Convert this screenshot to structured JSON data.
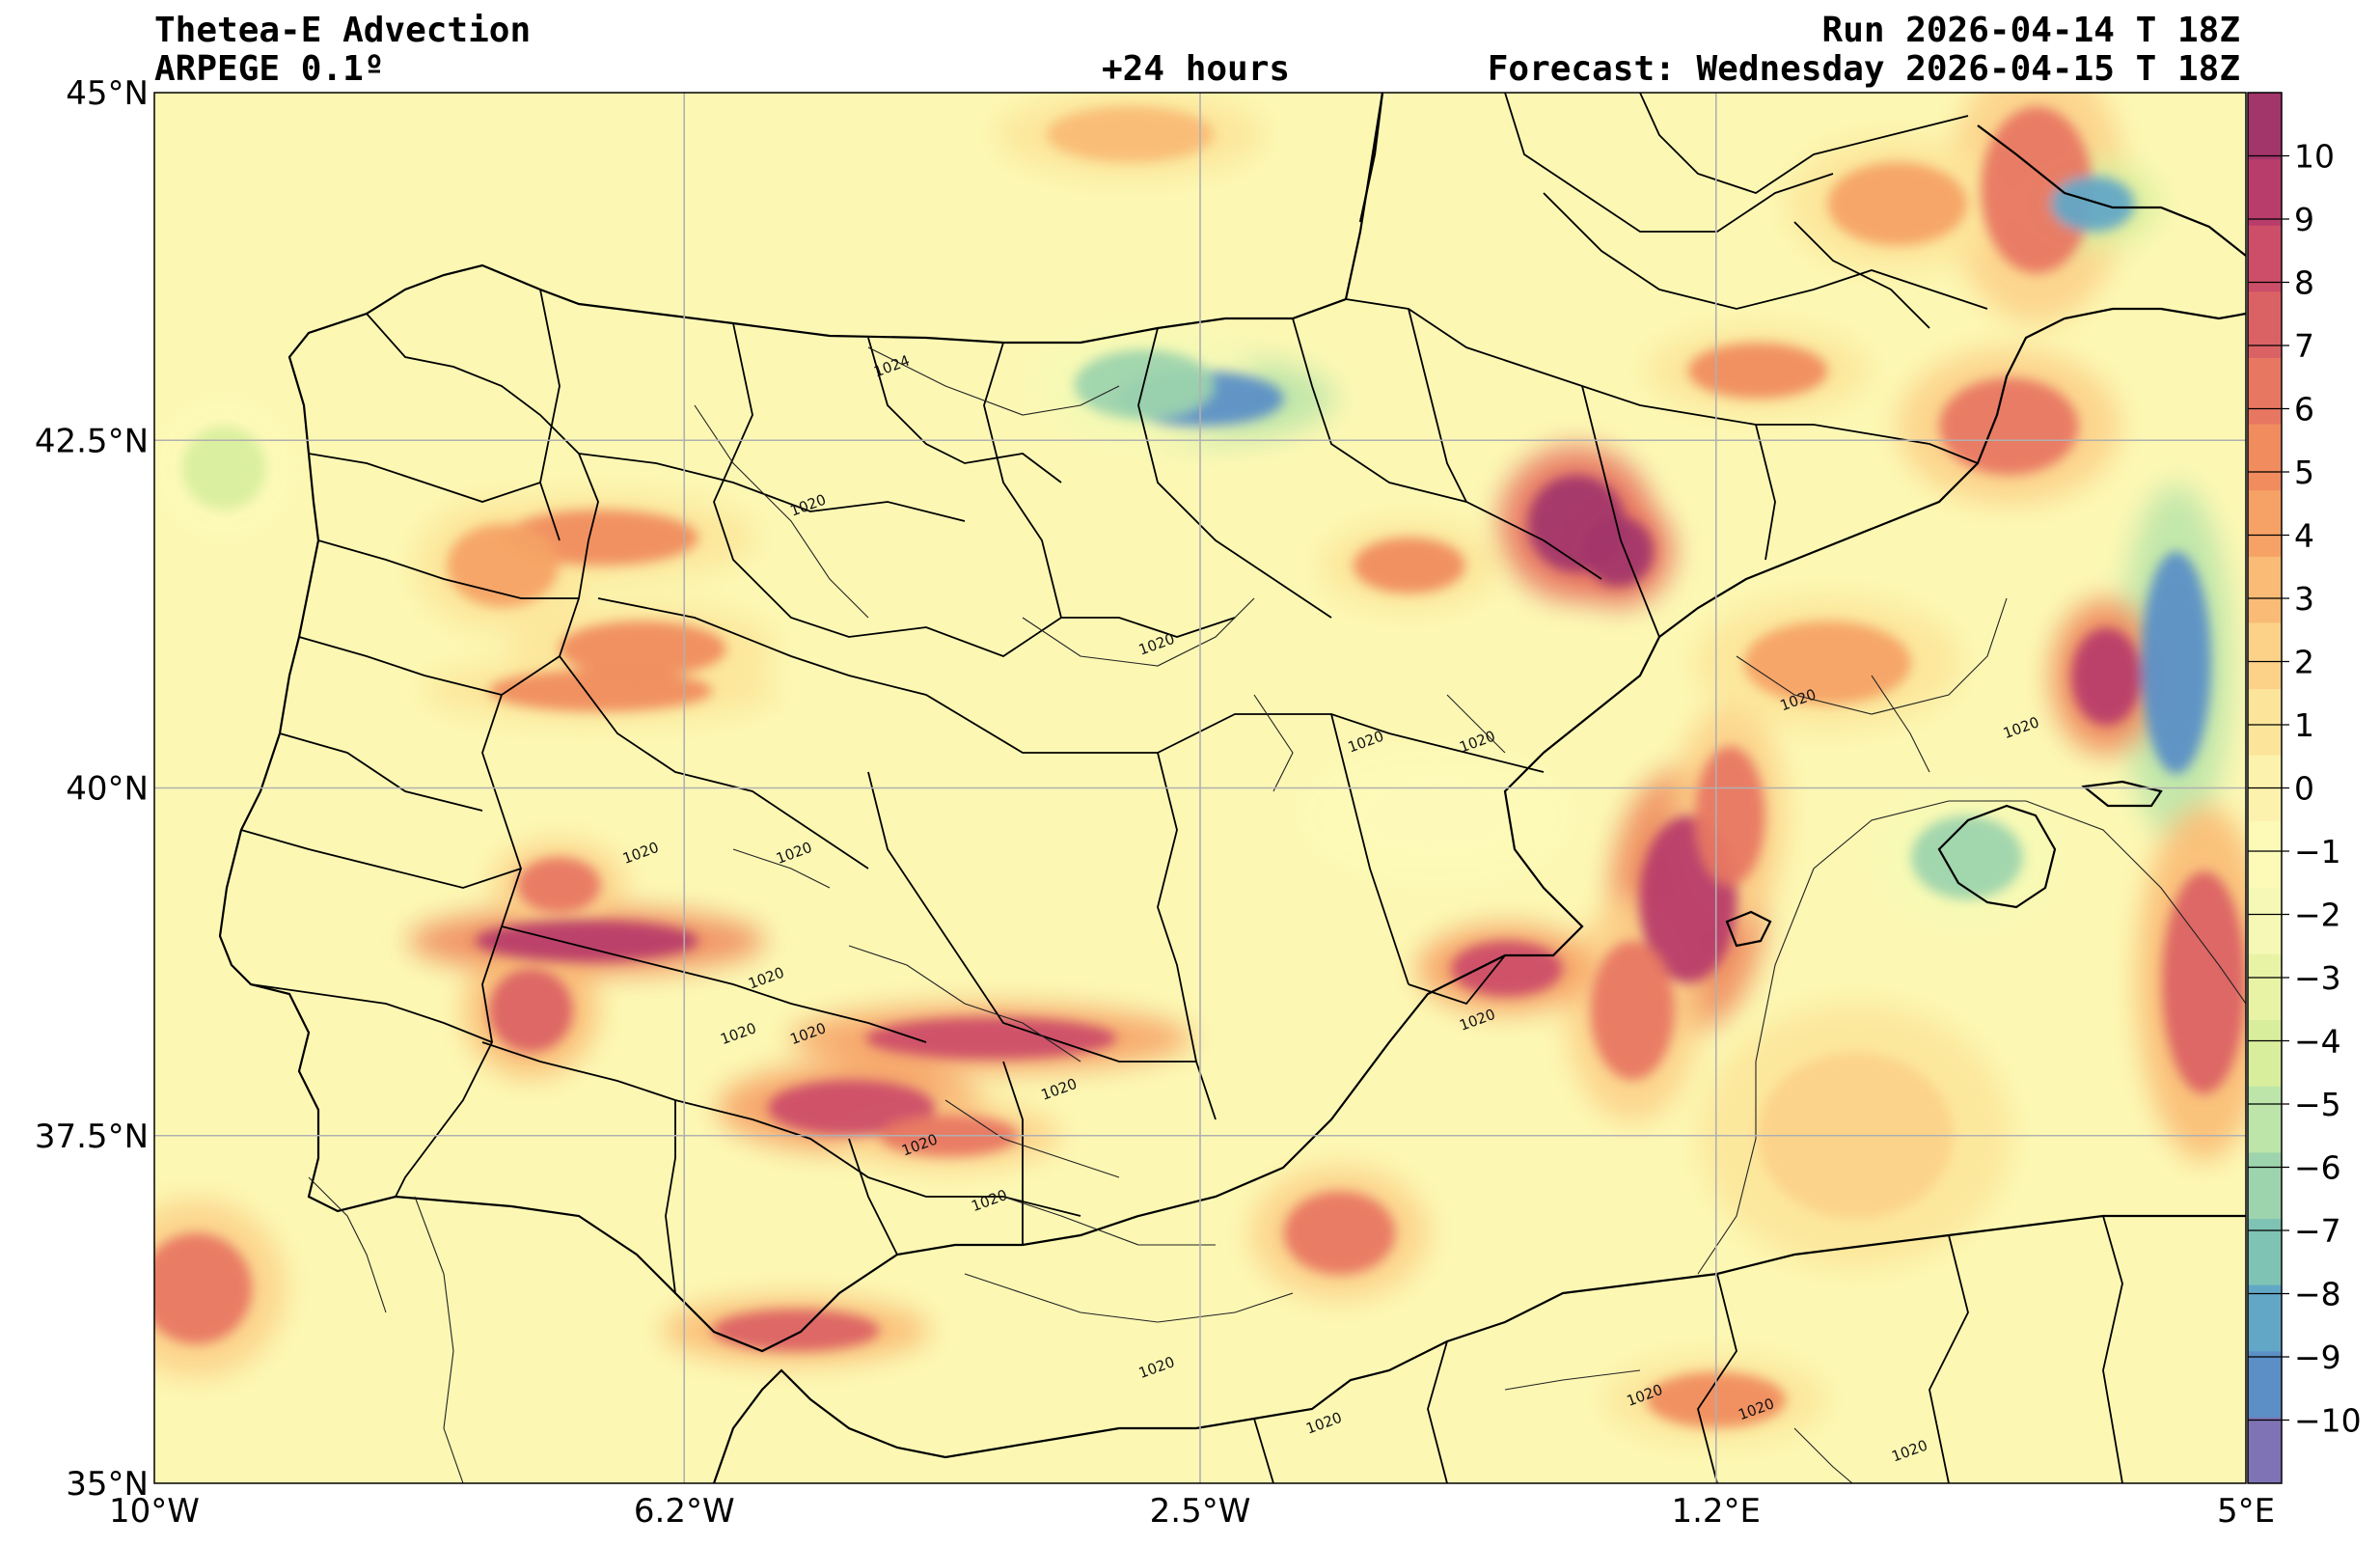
{
  "header": {
    "title": "Thetea-E Advection",
    "model": "ARPEGE 0.1º",
    "lead": "+24 hours",
    "run": "Run 2026-04-14 T 18Z",
    "forecast": "Forecast: Wednesday 2026-04-15 T 18Z"
  },
  "map": {
    "lon_range": [
      -10,
      5
    ],
    "lat_range": [
      35,
      45
    ],
    "lat_ticks": [
      {
        "value": 45,
        "label": "45°N"
      },
      {
        "value": 42.5,
        "label": "42.5°N"
      },
      {
        "value": 40,
        "label": "40°N"
      },
      {
        "value": 37.5,
        "label": "37.5°N"
      },
      {
        "value": 35,
        "label": "35°N"
      }
    ],
    "lon_ticks": [
      {
        "value": -10,
        "label": "10°W"
      },
      {
        "value": -6.2,
        "label": "6.2°W"
      },
      {
        "value": -2.5,
        "label": "2.5°W"
      },
      {
        "value": 1.2,
        "label": "1.2°E"
      },
      {
        "value": 5,
        "label": "5°E"
      }
    ],
    "grid": true,
    "isobar_labels": [
      {
        "lon": -4.7,
        "lat": 43.0,
        "text": "1024"
      },
      {
        "lon": -5.3,
        "lat": 42.0,
        "text": "1020"
      },
      {
        "lon": -2.8,
        "lat": 41.0,
        "text": "1020"
      },
      {
        "lon": -1.3,
        "lat": 40.3,
        "text": "1020"
      },
      {
        "lon": -0.5,
        "lat": 40.3,
        "text": "1020"
      },
      {
        "lon": 1.8,
        "lat": 40.6,
        "text": "1020"
      },
      {
        "lon": 3.4,
        "lat": 40.4,
        "text": "1020"
      },
      {
        "lon": -6.5,
        "lat": 39.5,
        "text": "1020"
      },
      {
        "lon": -5.4,
        "lat": 39.5,
        "text": "1020"
      },
      {
        "lon": -5.6,
        "lat": 38.6,
        "text": "1020"
      },
      {
        "lon": -5.8,
        "lat": 38.2,
        "text": "1020"
      },
      {
        "lon": -5.3,
        "lat": 38.2,
        "text": "1020"
      },
      {
        "lon": -0.5,
        "lat": 38.3,
        "text": "1020"
      },
      {
        "lon": -3.5,
        "lat": 37.8,
        "text": "1020"
      },
      {
        "lon": -4.5,
        "lat": 37.4,
        "text": "1020"
      },
      {
        "lon": -4.0,
        "lat": 37.0,
        "text": "1020"
      },
      {
        "lon": -2.8,
        "lat": 35.8,
        "text": "1020"
      },
      {
        "lon": 0.7,
        "lat": 35.6,
        "text": "1020"
      },
      {
        "lon": 1.5,
        "lat": 35.5,
        "text": "1020"
      },
      {
        "lon": 2.6,
        "lat": 35.2,
        "text": "1020"
      },
      {
        "lon": -1.6,
        "lat": 35.4,
        "text": "1020"
      }
    ]
  },
  "colorbar": {
    "min": -11,
    "max": 11,
    "ticks": [
      10,
      9,
      8,
      7,
      6,
      5,
      4,
      3,
      2,
      1,
      0,
      -1,
      -2,
      -3,
      -4,
      -5,
      -6,
      -7,
      -8,
      -9,
      -10
    ],
    "palette": [
      "#7f73b6",
      "#5b8fc6",
      "#62a8c6",
      "#7ec3b4",
      "#9dd4ad",
      "#bde5aa",
      "#d8ee9d",
      "#e8f3a6",
      "#f6f9b5",
      "#fdfab8",
      "#fcf2ae",
      "#fce59a",
      "#fcd289",
      "#f9bb76",
      "#f6a266",
      "#f08c5e",
      "#e87762",
      "#db6264",
      "#cc4e68",
      "#b83d6a",
      "#a2356a"
    ]
  },
  "field_blobs": [
    {
      "lon": 0.2,
      "lat": 41.9,
      "rx": 0.35,
      "ry": 0.35,
      "level": 10
    },
    {
      "lon": 0.5,
      "lat": 41.7,
      "rx": 0.25,
      "ry": 0.25,
      "level": 10
    },
    {
      "lon": 4.5,
      "lat": 40.9,
      "rx": 0.25,
      "ry": 0.8,
      "level": -9
    },
    {
      "lon": 4.0,
      "lat": 40.8,
      "rx": 0.25,
      "ry": 0.35,
      "level": 9
    },
    {
      "lon": 3.3,
      "lat": 42.6,
      "rx": 0.5,
      "ry": 0.35,
      "level": 6
    },
    {
      "lon": 3.5,
      "lat": 44.3,
      "rx": 0.4,
      "ry": 0.6,
      "level": 6
    },
    {
      "lon": 1.0,
      "lat": 39.2,
      "rx": 0.35,
      "ry": 0.6,
      "level": 9
    },
    {
      "lon": 1.3,
      "lat": 39.8,
      "rx": 0.25,
      "ry": 0.5,
      "level": 6
    },
    {
      "lon": 0.6,
      "lat": 38.4,
      "rx": 0.3,
      "ry": 0.5,
      "level": 6
    },
    {
      "lon": 4.7,
      "lat": 38.6,
      "rx": 0.3,
      "ry": 0.8,
      "level": 7
    },
    {
      "lon": -0.3,
      "lat": 38.7,
      "rx": 0.4,
      "ry": 0.2,
      "level": 8
    },
    {
      "lon": -6.9,
      "lat": 38.9,
      "rx": 0.8,
      "ry": 0.15,
      "level": 9
    },
    {
      "lon": -7.3,
      "lat": 38.4,
      "rx": 0.3,
      "ry": 0.3,
      "level": 7
    },
    {
      "lon": -7.1,
      "lat": 39.3,
      "rx": 0.3,
      "ry": 0.2,
      "level": 6
    },
    {
      "lon": -4.0,
      "lat": 38.2,
      "rx": 0.9,
      "ry": 0.15,
      "level": 8
    },
    {
      "lon": -5.0,
      "lat": 37.7,
      "rx": 0.6,
      "ry": 0.2,
      "level": 8
    },
    {
      "lon": -4.3,
      "lat": 37.5,
      "rx": 0.5,
      "ry": 0.15,
      "level": 6
    },
    {
      "lon": -5.4,
      "lat": 36.1,
      "rx": 0.6,
      "ry": 0.15,
      "level": 7
    },
    {
      "lon": -6.5,
      "lat": 41.0,
      "rx": 0.6,
      "ry": 0.2,
      "level": 5
    },
    {
      "lon": -6.8,
      "lat": 40.7,
      "rx": 0.8,
      "ry": 0.15,
      "level": 5
    },
    {
      "lon": -6.8,
      "lat": 41.8,
      "rx": 0.7,
      "ry": 0.2,
      "level": 5
    },
    {
      "lon": -9.7,
      "lat": 36.4,
      "rx": 0.4,
      "ry": 0.4,
      "level": 6
    },
    {
      "lon": -1.5,
      "lat": 36.8,
      "rx": 0.4,
      "ry": 0.3,
      "level": 6
    },
    {
      "lon": -1.0,
      "lat": 41.6,
      "rx": 0.4,
      "ry": 0.2,
      "level": 5
    },
    {
      "lon": -2.5,
      "lat": 42.8,
      "rx": 0.6,
      "ry": 0.2,
      "level": -9
    },
    {
      "lon": -2.9,
      "lat": 42.9,
      "rx": 0.5,
      "ry": 0.25,
      "level": -6
    },
    {
      "lon": 3.0,
      "lat": 39.5,
      "rx": 0.4,
      "ry": 0.3,
      "level": -6
    },
    {
      "lon": 2.5,
      "lat": 44.2,
      "rx": 0.5,
      "ry": 0.3,
      "level": 4
    },
    {
      "lon": 1.5,
      "lat": 43.0,
      "rx": 0.5,
      "ry": 0.2,
      "level": 5
    },
    {
      "lon": -7.5,
      "lat": 41.6,
      "rx": 0.4,
      "ry": 0.3,
      "level": 4
    },
    {
      "lon": 3.9,
      "lat": 44.2,
      "rx": 0.3,
      "ry": 0.2,
      "level": -8
    },
    {
      "lon": 1.2,
      "lat": 35.6,
      "rx": 0.5,
      "ry": 0.2,
      "level": 5
    },
    {
      "lon": 2.0,
      "lat": 40.9,
      "rx": 0.6,
      "ry": 0.3,
      "level": 4
    },
    {
      "lon": -9.5,
      "lat": 42.3,
      "rx": 0.3,
      "ry": 0.3,
      "level": -4
    },
    {
      "lon": -3.0,
      "lat": 44.7,
      "rx": 0.6,
      "ry": 0.2,
      "level": 3
    },
    {
      "lon": -0.8,
      "lat": 39.8,
      "rx": 0.6,
      "ry": 0.3,
      "level": -1
    },
    {
      "lon": 2.2,
      "lat": 37.5,
      "rx": 0.7,
      "ry": 0.6,
      "level": 2
    }
  ]
}
